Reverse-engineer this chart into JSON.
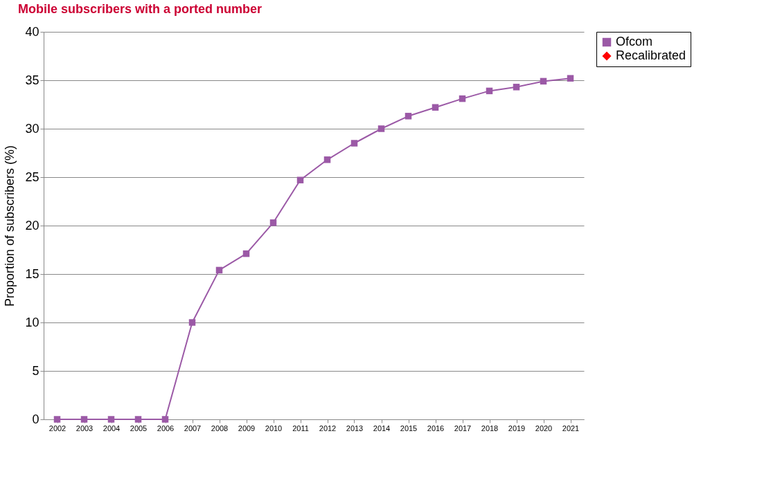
{
  "chart_data": {
    "type": "line",
    "title": "Mobile subscribers with a ported number",
    "ylabel": "Proportion of subscribers (%)",
    "categories": [
      "2002",
      "2003",
      "2004",
      "2005",
      "2006",
      "2007",
      "2008",
      "2009",
      "2010",
      "2011",
      "2012",
      "2013",
      "2014",
      "2015",
      "2016",
      "2017",
      "2018",
      "2019",
      "2020",
      "2021"
    ],
    "series": [
      {
        "name": "Ofcom",
        "color": "#9b59a6",
        "marker": "square",
        "values": [
          0,
          0,
          0,
          0,
          0,
          10.0,
          15.4,
          17.1,
          20.3,
          24.7,
          26.8,
          28.5,
          30.0,
          31.3,
          32.2,
          33.1,
          33.9,
          34.3,
          34.9,
          35.2
        ]
      },
      {
        "name": "Recalibrated",
        "color": "#ff0000",
        "marker": "diamond",
        "values": [
          null,
          null,
          null,
          null,
          null,
          null,
          null,
          null,
          null,
          null,
          null,
          null,
          null,
          null,
          null,
          null,
          null,
          null,
          null,
          null
        ]
      }
    ],
    "ylim": [
      0,
      40
    ],
    "yticks": [
      0,
      5,
      10,
      15,
      20,
      25,
      30,
      35,
      40
    ],
    "grid": "y",
    "legend": "right",
    "line_style": "solid"
  }
}
